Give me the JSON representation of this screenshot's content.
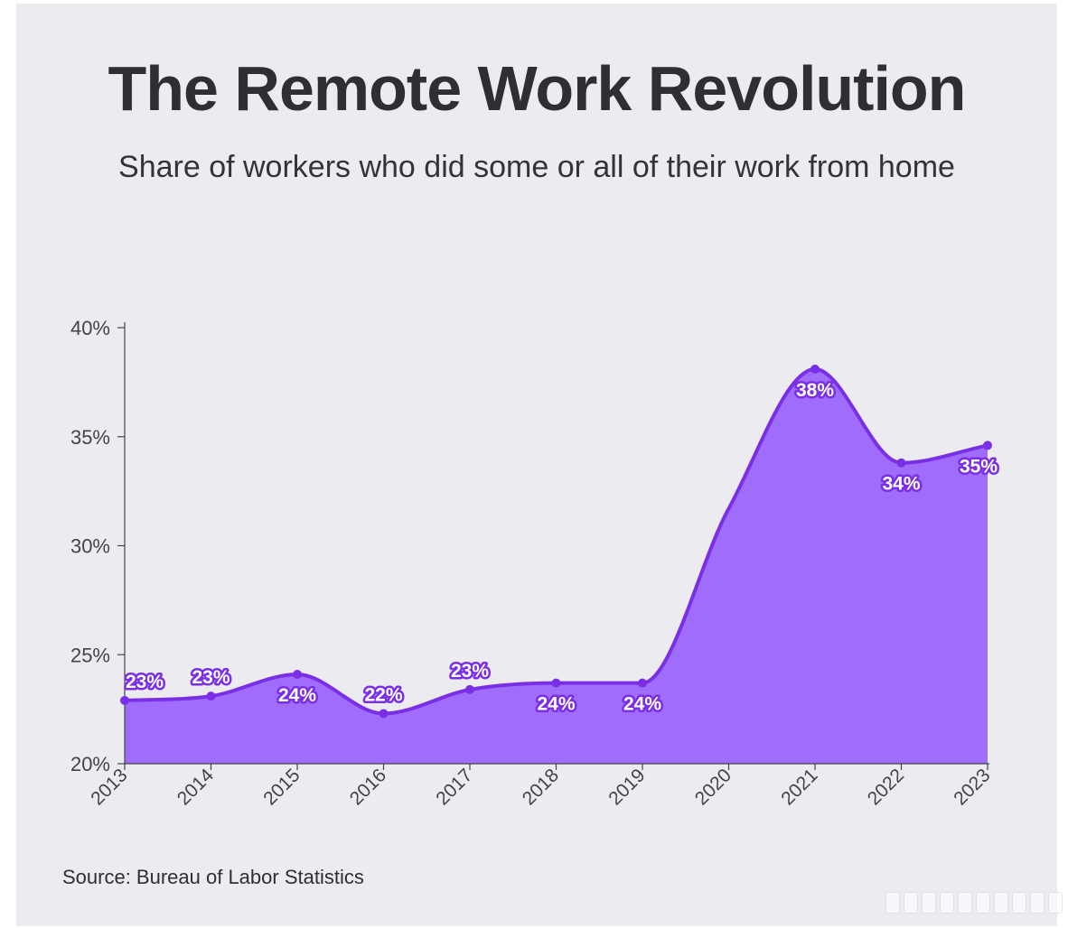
{
  "chart_data": {
    "type": "area",
    "title": "The Remote Work Revolution",
    "subtitle": "Share of workers who did some or all of their work from home",
    "source": "Source: Bureau of Labor Statistics",
    "categories": [
      "2013",
      "2014",
      "2015",
      "2016",
      "2017",
      "2018",
      "2019",
      "2020",
      "2021",
      "2022",
      "2023"
    ],
    "values": [
      22.9,
      23.1,
      24.1,
      22.3,
      23.4,
      23.7,
      23.7,
      null,
      38.1,
      33.8,
      34.6
    ],
    "data_labels": [
      "23%",
      "23%",
      "24%",
      "22%",
      "23%",
      "24%",
      "24%",
      "",
      "38%",
      "34%",
      "35%"
    ],
    "ylim": [
      20,
      40
    ],
    "yticks": [
      20,
      25,
      30,
      35,
      40
    ],
    "ytick_labels": [
      "20%",
      "25%",
      "30%",
      "35%",
      "40%"
    ],
    "xlabel": "",
    "ylabel": "",
    "grid": false,
    "colors": {
      "fill": "#a06cfb",
      "line": "#7a2fe6",
      "label_text": "#ffffff",
      "axis": "#444448",
      "tick_text": "#444448"
    }
  }
}
